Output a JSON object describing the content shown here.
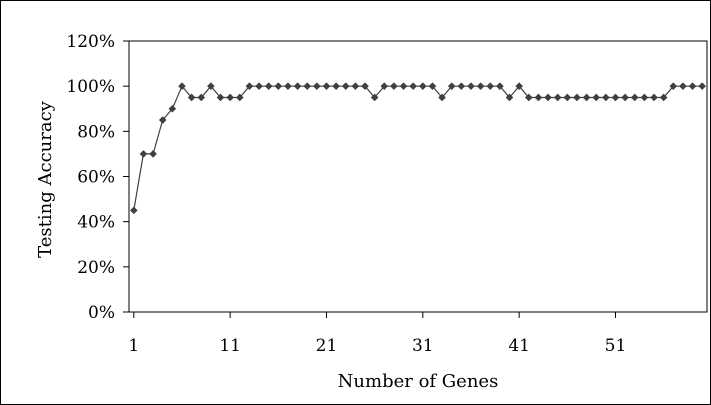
{
  "chart_data": {
    "type": "line",
    "xlabel": "Number of Genes",
    "ylabel": "Testing Accuracy",
    "x_tick_labels": [
      "1",
      "11",
      "21",
      "31",
      "41",
      "51"
    ],
    "x_ticks": [
      1,
      11,
      21,
      31,
      41,
      51
    ],
    "y_tick_labels": [
      "0%",
      "20%",
      "40%",
      "60%",
      "80%",
      "100%",
      "120%"
    ],
    "y_ticks": [
      0,
      20,
      40,
      60,
      80,
      100,
      120
    ],
    "ylim": [
      0,
      120
    ],
    "xlim": [
      0.5,
      60.5
    ],
    "grid": false,
    "legend": "none",
    "series": [
      {
        "color": "#404040",
        "marker": "diamond",
        "x": [
          1,
          2,
          3,
          4,
          5,
          6,
          7,
          8,
          9,
          10,
          11,
          12,
          13,
          14,
          15,
          16,
          17,
          18,
          19,
          20,
          21,
          22,
          23,
          24,
          25,
          26,
          27,
          28,
          29,
          30,
          31,
          32,
          33,
          34,
          35,
          36,
          37,
          38,
          39,
          40,
          41,
          42,
          43,
          44,
          45,
          46,
          47,
          48,
          49,
          50,
          51,
          52,
          53,
          54,
          55,
          56,
          57,
          58,
          59,
          60
        ],
        "values": [
          45,
          70,
          70,
          85,
          90,
          100,
          95,
          95,
          100,
          95,
          95,
          95,
          100,
          100,
          100,
          100,
          100,
          100,
          100,
          100,
          100,
          100,
          100,
          100,
          100,
          95,
          100,
          100,
          100,
          100,
          100,
          100,
          95,
          100,
          100,
          100,
          100,
          100,
          100,
          95,
          100,
          95,
          95,
          95,
          95,
          95,
          95,
          95,
          95,
          95,
          95,
          95,
          95,
          95,
          95,
          95,
          100,
          100,
          100,
          100
        ]
      }
    ]
  }
}
